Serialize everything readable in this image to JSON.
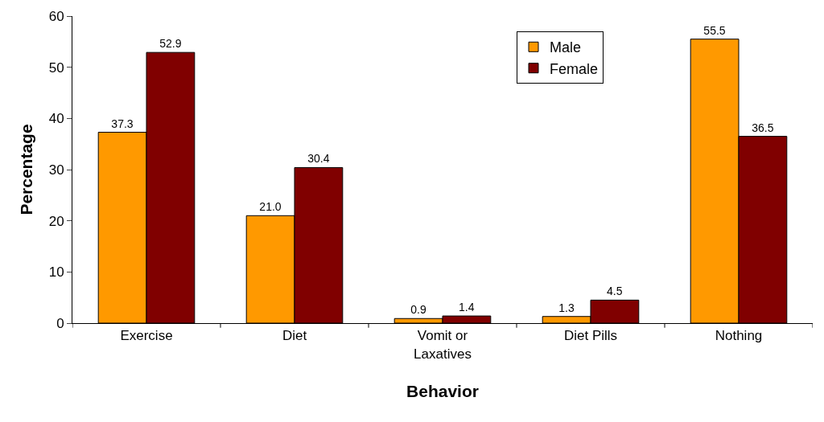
{
  "chart_data": {
    "type": "bar",
    "xlabel": "Behavior",
    "ylabel": "Percentage",
    "categories": [
      "Exercise",
      "Diet",
      "Vomit or Laxatives",
      "Diet Pills",
      "Nothing"
    ],
    "series": [
      {
        "name": "Male",
        "color": "#ff9900",
        "values": [
          37.3,
          21.0,
          0.9,
          1.3,
          55.5
        ],
        "value_labels": [
          "37.3",
          "21.0",
          "0.9",
          "1.3",
          "55.5"
        ]
      },
      {
        "name": "Female",
        "color": "#800000",
        "values": [
          52.9,
          30.4,
          1.4,
          4.5,
          36.5
        ],
        "value_labels": [
          "52.9",
          "30.4",
          "1.4",
          "4.5",
          "36.5"
        ]
      }
    ],
    "ylim": [
      0,
      60
    ],
    "yticks": [
      0,
      10,
      20,
      30,
      40,
      50,
      60
    ],
    "grid": false,
    "legend": "top right"
  }
}
